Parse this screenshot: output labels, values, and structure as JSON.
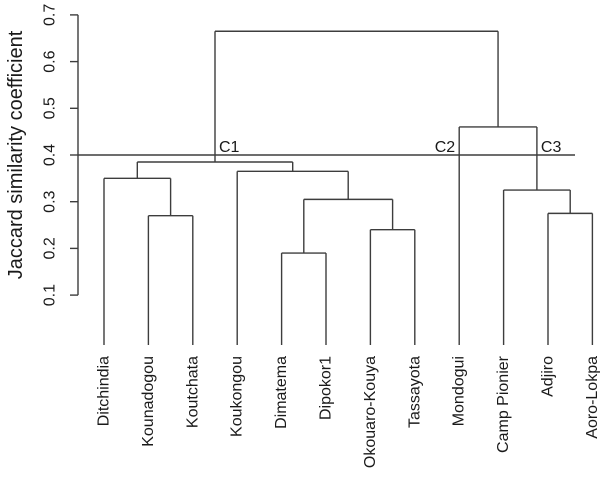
{
  "figure": {
    "background": "#ffffff",
    "line_color": "#3d3d3d",
    "text_color": "#1a1a1a"
  },
  "chart_data": {
    "type": "dendrogram",
    "title": "",
    "xlabel": "",
    "ylabel": "Jaccard similarity coefficient",
    "yticks": [
      "0.1",
      "0.2",
      "0.3",
      "0.4",
      "0.5",
      "0.6",
      "0.7"
    ],
    "ylim": [
      0.1,
      0.7
    ],
    "grid": false,
    "cut_line_value": 0.4,
    "leaves": [
      "Ditchindia",
      "Kounadogou",
      "Koutchata",
      "Koukongou",
      "Dimatema",
      "Dipokor1",
      "Okouaro-Kouya",
      "Tassayota",
      "Mondogui",
      "Camp Pionier",
      "Adjiro",
      "Aoro-Lokpa"
    ],
    "clusters": [
      {
        "label": "C1",
        "members": [
          "Ditchindia",
          "Kounadogou",
          "Koutchata",
          "Koukongou",
          "Dimatema",
          "Dipokor1",
          "Okouaro-Kouya",
          "Tassayota"
        ]
      },
      {
        "label": "C2",
        "members": [
          "Mondogui"
        ]
      },
      {
        "label": "C3",
        "members": [
          "Camp Pionier",
          "Adjiro",
          "Aoro-Lokpa"
        ]
      }
    ],
    "tree": {
      "h": 0.665,
      "children": [
        {
          "h": 0.385,
          "label": "C1",
          "label_side": "right",
          "children": [
            {
              "h": 0.35,
              "children": [
                {
                  "leaf": "Ditchindia"
                },
                {
                  "h": 0.27,
                  "children": [
                    {
                      "leaf": "Kounadogou"
                    },
                    {
                      "leaf": "Koutchata"
                    }
                  ]
                }
              ]
            },
            {
              "h": 0.365,
              "children": [
                {
                  "leaf": "Koukongou"
                },
                {
                  "h": 0.305,
                  "children": [
                    {
                      "h": 0.19,
                      "children": [
                        {
                          "leaf": "Dimatema"
                        },
                        {
                          "leaf": "Dipokor1"
                        }
                      ]
                    },
                    {
                      "h": 0.24,
                      "children": [
                        {
                          "leaf": "Okouaro-Kouya"
                        },
                        {
                          "leaf": "Tassayota"
                        }
                      ]
                    }
                  ]
                }
              ]
            }
          ]
        },
        {
          "h": 0.46,
          "children": [
            {
              "leaf": "Mondogui",
              "label": "C2",
              "label_side": "left"
            },
            {
              "h": 0.325,
              "label": "C3",
              "label_side": "right",
              "children": [
                {
                  "leaf": "Camp Pionier"
                },
                {
                  "h": 0.275,
                  "children": [
                    {
                      "leaf": "Adjiro"
                    },
                    {
                      "leaf": "Aoro-Lokpa"
                    }
                  ]
                }
              ]
            }
          ]
        }
      ]
    }
  }
}
